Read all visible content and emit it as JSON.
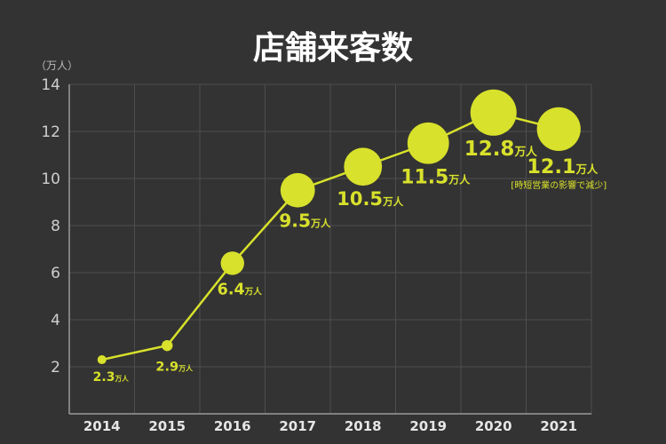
{
  "chart_data": {
    "type": "line",
    "title": "店舗来客数",
    "y_unit_label": "（万人）",
    "x": [
      "2014",
      "2015",
      "2016",
      "2017",
      "2018",
      "2019",
      "2020",
      "2021"
    ],
    "series": [
      {
        "values": [
          2.3,
          2.9,
          6.4,
          9.5,
          10.5,
          11.5,
          12.8,
          12.1
        ]
      }
    ],
    "data_labels": [
      "2.3",
      "2.9",
      "6.4",
      "9.5",
      "10.5",
      "11.5",
      "12.8",
      "12.1"
    ],
    "value_unit": "万人",
    "annotation": "[時短営業の影響で減少]",
    "yticks": [
      "2",
      "4",
      "6",
      "8",
      "10",
      "12",
      "14"
    ],
    "ylim": [
      0,
      14
    ],
    "grid": true,
    "marker_size_encodes_value": true,
    "colors": {
      "background": "#333333",
      "accent": "#d8e12b",
      "grid": "#4e4e4e",
      "axis": "#9a9a9a"
    }
  }
}
